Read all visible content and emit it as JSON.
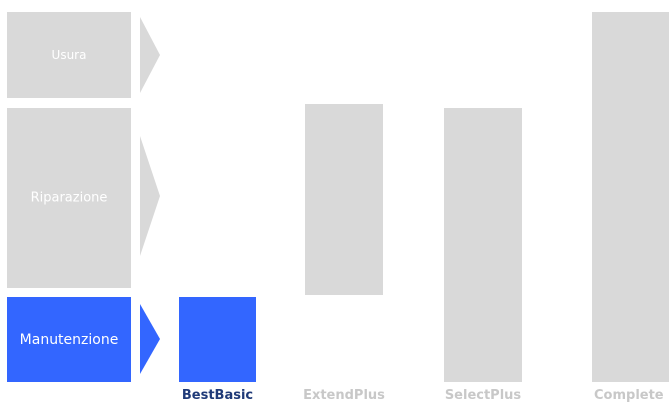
{
  "categories": [
    {
      "label": "Usura",
      "active": false
    },
    {
      "label": "Riparazione",
      "active": false
    },
    {
      "label": "Manutenzione",
      "active": true
    }
  ],
  "products": [
    {
      "label": "BestBasic",
      "active": true
    },
    {
      "label": "ExtendPlus",
      "active": false
    },
    {
      "label": "SelectPlus",
      "active": false
    },
    {
      "label": "Complete",
      "active": false
    }
  ],
  "colors": {
    "active": "#3366ff",
    "inactive": "#d9d9d9",
    "active_text": "#1f3a78",
    "inactive_text": "#c8c8c8"
  }
}
